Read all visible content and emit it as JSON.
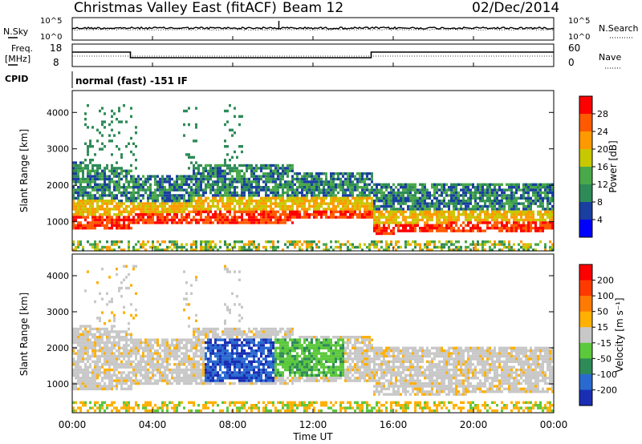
{
  "header": {
    "radar": "Christmas Valley East (fitACF)",
    "beam": "Beam 12",
    "date": "02/Dec/2014"
  },
  "top_panels": {
    "nsky_label": "N.Sky",
    "nsky_ticks": [
      "10^5",
      "10^0"
    ],
    "nsearch_label": "N.Search",
    "nsearch_ticks": [
      "10^5",
      "10^0"
    ],
    "freq_label_1": "Freq.",
    "freq_label_2": "[MHz]",
    "freq_ticks": [
      "18",
      "8"
    ],
    "nave_label": "Nave",
    "nave_ticks": [
      "60",
      "0"
    ],
    "cpid_label": "CPID",
    "cpid_value": "normal (fast) -151 IF"
  },
  "chart_data": [
    {
      "type": "heatmap",
      "name": "power",
      "ylabel": "Slant Range [km]",
      "yticks": [
        "1000",
        "2000",
        "3000",
        "4000"
      ],
      "ylim": [
        200,
        4600
      ],
      "colorbar_label": "Power [dB]",
      "colorbar_ticks": [
        "4",
        "8",
        "12",
        "16",
        "20",
        "24",
        "28"
      ],
      "colorbar_range": [
        0,
        32
      ],
      "colors": [
        "#0000ff",
        "#1a3fa0",
        "#2e8b57",
        "#4aa84a",
        "#c8c800",
        "#ff9900",
        "#ff5a00",
        "#ff0000"
      ]
    },
    {
      "type": "heatmap",
      "name": "velocity",
      "ylabel": "Slant Range [km]",
      "yticks": [
        "1000",
        "2000",
        "3000",
        "4000"
      ],
      "ylim": [
        200,
        4600
      ],
      "colorbar_label": "Velocity [m s⁻¹]",
      "colorbar_ticks": [
        "200",
        "100",
        "50",
        "15",
        "-15",
        "-50",
        "-100",
        "-200"
      ],
      "colors": [
        "#1a2eb4",
        "#2a6ad0",
        "#2e8b57",
        "#5cc83c",
        "#c8c8c8",
        "#ffb000",
        "#ff7a00",
        "#ff3a00",
        "#ff0000"
      ]
    }
  ],
  "x_axis": {
    "label": "Time UT",
    "ticks": [
      "00:00",
      "04:00",
      "08:00",
      "12:00",
      "16:00",
      "20:00",
      "00:00"
    ],
    "hours": [
      0,
      4,
      8,
      12,
      16,
      20,
      24
    ]
  }
}
